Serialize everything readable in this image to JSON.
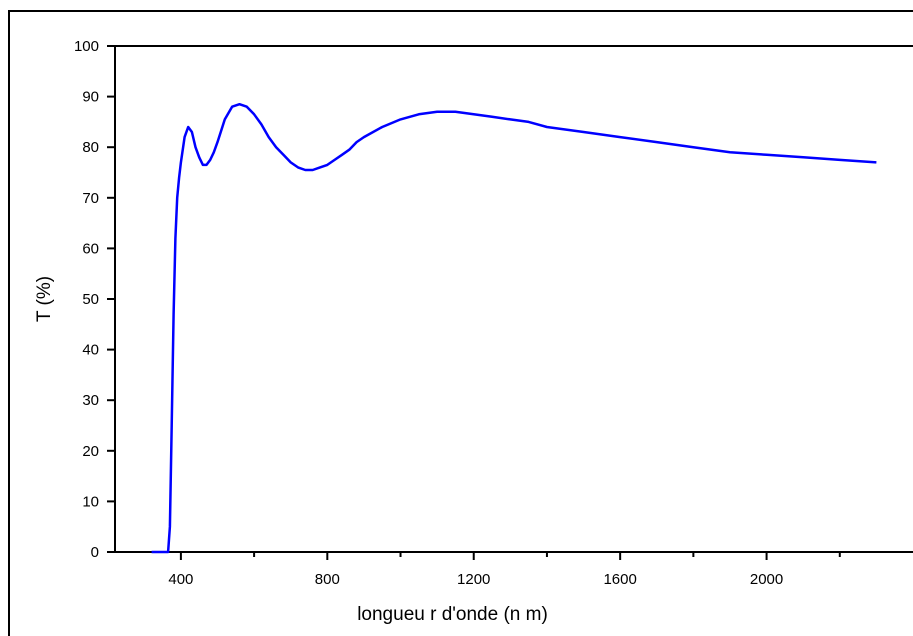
{
  "chart_data": {
    "type": "line",
    "xlabel": "longueu r d'onde (n m)",
    "ylabel": "T (%)",
    "xlim": [
      220,
      2400
    ],
    "ylim": [
      0,
      100
    ],
    "x_ticks": [
      400,
      800,
      1200,
      1600,
      2000
    ],
    "x_minor_ticks": [
      200,
      600,
      1000,
      1400,
      1800,
      2200
    ],
    "y_ticks": [
      0,
      10,
      20,
      30,
      40,
      50,
      60,
      70,
      80,
      90,
      100
    ],
    "grid": false,
    "series": [
      {
        "color": "#0000ff",
        "x": [
          320,
          350,
          365,
          370,
          375,
          380,
          385,
          390,
          395,
          400,
          410,
          420,
          430,
          440,
          450,
          460,
          470,
          480,
          490,
          500,
          520,
          540,
          560,
          580,
          600,
          620,
          640,
          660,
          680,
          700,
          720,
          740,
          760,
          780,
          800,
          820,
          840,
          860,
          880,
          900,
          950,
          1000,
          1050,
          1100,
          1150,
          1200,
          1250,
          1300,
          1350,
          1400,
          1500,
          1600,
          1700,
          1800,
          1900,
          2000,
          2100,
          2200,
          2300
        ],
        "y": [
          0,
          0,
          0,
          5,
          25,
          47,
          62,
          70,
          74,
          77,
          82,
          84,
          83,
          80,
          78,
          76.5,
          76.5,
          77.5,
          79,
          81,
          85.5,
          88,
          88.5,
          88,
          86.5,
          84.5,
          82,
          80,
          78.5,
          77,
          76,
          75.5,
          75.5,
          76,
          76.5,
          77.5,
          78.5,
          79.5,
          81,
          82,
          84,
          85.5,
          86.5,
          87,
          87,
          86.5,
          86,
          85.5,
          85,
          84,
          83,
          82,
          81,
          80,
          79,
          78.5,
          78,
          77.5,
          77
        ]
      }
    ]
  }
}
